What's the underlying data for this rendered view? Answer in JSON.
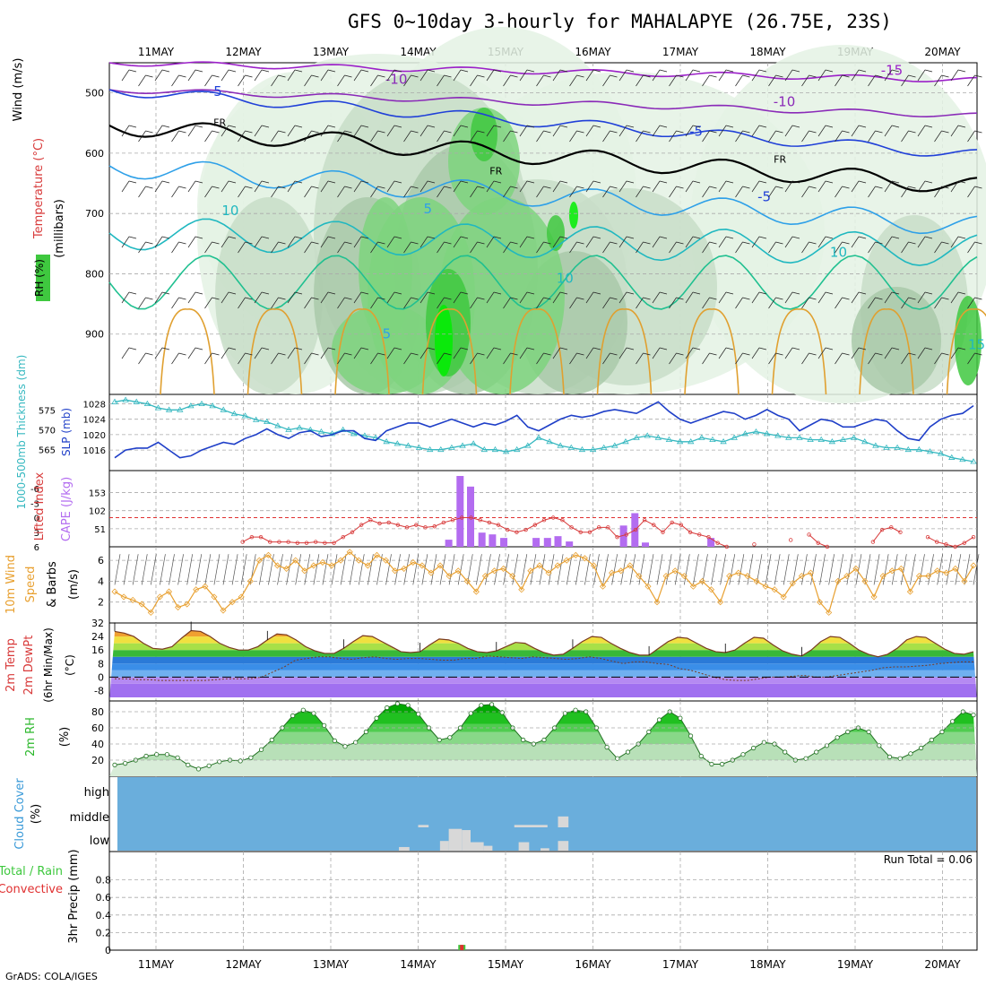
{
  "title": "GFS 0~10day 3-hourly for MAHALAPYE (26.75E, 23S)",
  "credit": "GrADS: COLA/IGES",
  "run_total": "Run Total = 0.06",
  "colors": {
    "grid": "#aaaaaa",
    "slp": "#1f3fc8",
    "thickness": "#36b8c0",
    "lifted": "#d83a3a",
    "cape": "#b36cf0",
    "wind10": "#e8a030",
    "rh2m": "#2cb82c",
    "cloud_bg": "#6aaedc",
    "cloud": "#d8d8d8",
    "rain": "#3ec83e",
    "convective": "#e03030"
  },
  "date_labels": [
    "11MAY",
    "12MAY",
    "13MAY",
    "14MAY",
    "15MAY",
    "16MAY",
    "17MAY",
    "18MAY",
    "19MAY",
    "20MAY"
  ],
  "chart_data": [
    {
      "id": "upper_air",
      "type": "heatmap",
      "ylabel": "(millibars)",
      "side_labels": [
        "Wind (m/s)",
        "Temperature (°C)",
        "RH (%)"
      ],
      "yticks": [
        500,
        600,
        700,
        800,
        900
      ],
      "ylim": [
        1000,
        450
      ],
      "contour_labels": [
        {
          "text": "-15",
          "x": 8.42,
          "p": 470
        },
        {
          "text": "-10",
          "x": 2.75,
          "p": 485
        },
        {
          "text": "-10",
          "x": 7.19,
          "p": 522
        },
        {
          "text": "-5",
          "x": 0.68,
          "p": 505
        },
        {
          "text": "-5",
          "x": 6.18,
          "p": 571
        },
        {
          "text": "-5",
          "x": 6.96,
          "p": 680
        },
        {
          "text": "FR",
          "x": 0.73,
          "p": 555
        },
        {
          "text": "FR",
          "x": 3.89,
          "p": 635
        },
        {
          "text": "FR",
          "x": 7.14,
          "p": 616
        },
        {
          "text": "10",
          "x": 0.85,
          "p": 703
        },
        {
          "text": "5",
          "x": 3.11,
          "p": 700
        },
        {
          "text": "10",
          "x": 4.68,
          "p": 815
        },
        {
          "text": "5",
          "x": 2.64,
          "p": 907
        },
        {
          "text": "10",
          "x": 7.81,
          "p": 772
        },
        {
          "text": "15",
          "x": 9.39,
          "p": 925
        }
      ]
    },
    {
      "id": "thickness_slp",
      "type": "line",
      "ylabel_left": "1000-500mb Thickness (dm)",
      "ylabel_right": "SLP (mb)",
      "thickness_ticks": [
        565,
        570,
        575
      ],
      "slp_ticks": [
        1016,
        1020,
        1024,
        1028
      ],
      "series": [
        {
          "name": "Thickness",
          "values": [
            577,
            577.5,
            577,
            576.5,
            575.5,
            575,
            575,
            576,
            576.5,
            576,
            575,
            574,
            573.5,
            572.5,
            572,
            571,
            570,
            570.5,
            570,
            569.5,
            569,
            570,
            569,
            568.5,
            568,
            567,
            566.5,
            566,
            565.5,
            565,
            565,
            565.5,
            566,
            566.5,
            565,
            565,
            564.5,
            565,
            566,
            568,
            567,
            566,
            565.5,
            565,
            565,
            565.5,
            566,
            567,
            568,
            568.5,
            568,
            567.5,
            567,
            567,
            568,
            567.5,
            567,
            568,
            569,
            569.5,
            569,
            568.5,
            568,
            568,
            567.5,
            567.5,
            567,
            567.5,
            568,
            567,
            566,
            565.5,
            565.5,
            565,
            565,
            564.5,
            564,
            563,
            562.5,
            562
          ]
        },
        {
          "name": "SLP",
          "values": [
            1014,
            1016,
            1016.5,
            1016.5,
            1018,
            1016,
            1014,
            1014.5,
            1016,
            1017,
            1018,
            1017.5,
            1019,
            1020,
            1021.5,
            1020,
            1019,
            1020.5,
            1021,
            1019.5,
            1020,
            1021,
            1021,
            1019,
            1018.5,
            1021,
            1022,
            1023,
            1023,
            1022,
            1023,
            1024,
            1023,
            1022,
            1023,
            1022.5,
            1023.5,
            1025,
            1022,
            1021,
            1022.5,
            1024,
            1025,
            1024.5,
            1025,
            1026,
            1026.5,
            1026,
            1025.5,
            1027,
            1028.5,
            1026,
            1024,
            1023,
            1024,
            1025,
            1026,
            1025.5,
            1024,
            1025,
            1026.5,
            1025,
            1024,
            1021,
            1022.5,
            1024,
            1023.5,
            1022,
            1022,
            1023,
            1024,
            1023.5,
            1021,
            1019,
            1018.5,
            1022,
            1024,
            1025,
            1025.5,
            1027.5
          ]
        }
      ]
    },
    {
      "id": "lifted_cape",
      "type": "bar",
      "ylabel_left": "Lifted Index",
      "ylabel_right": "CAPE (J/kg)",
      "li_ticks": [
        "-6",
        "-3",
        "0",
        "3",
        "6"
      ],
      "cape_ticks": [
        51,
        102,
        153
      ],
      "cape_bars": [
        {
          "x": 3.35,
          "v": 20
        },
        {
          "x": 3.48,
          "v": 200
        },
        {
          "x": 3.6,
          "v": 170
        },
        {
          "x": 3.73,
          "v": 40
        },
        {
          "x": 3.85,
          "v": 35
        },
        {
          "x": 3.98,
          "v": 25
        },
        {
          "x": 4.35,
          "v": 25
        },
        {
          "x": 4.48,
          "v": 25
        },
        {
          "x": 4.6,
          "v": 30
        },
        {
          "x": 4.73,
          "v": 15
        },
        {
          "x": 5.35,
          "v": 60
        },
        {
          "x": 5.48,
          "v": 95
        },
        {
          "x": 5.6,
          "v": 12
        },
        {
          "x": 6.35,
          "v": 25
        }
      ],
      "lifted_index": [
        null,
        null,
        null,
        null,
        null,
        null,
        null,
        null,
        null,
        null,
        null,
        null,
        null,
        null,
        5,
        4,
        4,
        5,
        5,
        5,
        5.2,
        5.2,
        5,
        5.2,
        5.2,
        4,
        3,
        1.5,
        0.5,
        1.2,
        1,
        1.5,
        2,
        1.5,
        2,
        1.8,
        1,
        0.5,
        0,
        0,
        0.5,
        1,
        1.5,
        2.5,
        3,
        2.5,
        1.5,
        0.5,
        0,
        0.5,
        2,
        3,
        3,
        2,
        2,
        4,
        3.5,
        2.5,
        0.5,
        1.5,
        3,
        1,
        1.5,
        3,
        3.5,
        4,
        5.2,
        6,
        null,
        null,
        5.5,
        null,
        null,
        null,
        4.6,
        null,
        3.5,
        5.2,
        6,
        null,
        null,
        null,
        null,
        5,
        2.5,
        2,
        3,
        null,
        null,
        4,
        5,
        5.5,
        6,
        5.2,
        4
      ]
    },
    {
      "id": "wind10m",
      "type": "line",
      "ylabel": "10m Wind Speed & Barbs (m/s)",
      "ticks": [
        2,
        4,
        6
      ],
      "values": [
        3,
        2.5,
        2.2,
        1.8,
        1,
        2.5,
        3,
        1.5,
        1.8,
        3.2,
        3.5,
        2.5,
        1.2,
        2,
        2.5,
        4,
        6,
        6.5,
        5.5,
        5.2,
        6,
        5,
        5.5,
        5.8,
        5.5,
        6,
        6.8,
        6,
        5.5,
        6.5,
        6,
        5,
        5.2,
        5.8,
        5.5,
        4.8,
        5.5,
        4.5,
        5,
        4,
        3,
        4.5,
        5,
        5.2,
        4.5,
        3.2,
        5,
        5.5,
        4.8,
        5.5,
        6,
        6.5,
        6.2,
        5.5,
        3.5,
        4.8,
        5,
        5.5,
        4.5,
        3.5,
        2,
        4.5,
        5,
        4.5,
        3.5,
        4,
        3.2,
        2,
        4.5,
        4.8,
        4.5,
        4,
        3.5,
        3.2,
        2.5,
        3.8,
        4.5,
        4.8,
        2,
        1,
        4,
        4.5,
        5.2,
        4,
        2.5,
        4.5,
        5,
        5.2,
        3,
        4.5,
        4.5,
        5,
        4.8,
        5.2,
        4,
        5.5
      ]
    },
    {
      "id": "temp2m",
      "type": "area",
      "ylabel": "2m Temp 2m DewPt (6hr Min/Max) (°C)",
      "ticks": [
        "-8",
        "0",
        "8",
        "16",
        "24",
        "32"
      ],
      "temp": [
        27,
        26,
        24,
        20,
        17,
        16.5,
        18,
        23,
        27.5,
        27,
        24,
        20,
        17.5,
        16,
        16,
        18,
        22,
        25.5,
        25,
        22,
        18,
        15.5,
        14,
        14,
        17,
        21,
        24.5,
        24,
        21,
        18,
        15,
        14.5,
        15,
        19,
        22.5,
        22,
        20,
        17,
        15,
        14.5,
        15.5,
        18,
        20.5,
        20,
        17,
        14.5,
        13,
        13.5,
        17,
        21,
        24,
        23.5,
        20,
        17,
        14.5,
        13,
        13,
        17,
        21,
        23.5,
        23,
        20,
        17,
        15,
        14.5,
        16,
        20,
        23.5,
        23,
        19,
        15.5,
        13.5,
        12.5,
        16,
        21,
        24,
        23.5,
        20,
        16,
        13.5,
        12,
        13.5,
        17,
        22,
        24,
        23.5,
        20,
        16.5,
        14,
        13.5,
        15
      ],
      "dewpt": [
        -1,
        -1,
        -1.5,
        -1.5,
        -2,
        -2,
        -2,
        -2,
        -2,
        -1.5,
        -1,
        -1,
        -1,
        0,
        3,
        6,
        10,
        11,
        12,
        12,
        11,
        10.5,
        11.5,
        12,
        11,
        10.5,
        11,
        11,
        10.5,
        10,
        10,
        11,
        11,
        12.5,
        12,
        11.5,
        11,
        12,
        11.5,
        11,
        10.5,
        11,
        12,
        11,
        9.5,
        8,
        9,
        9,
        8,
        7.5,
        5,
        4,
        2,
        0,
        -1.5,
        -2,
        -2,
        -1,
        0,
        0,
        0.5,
        1,
        0,
        0,
        1,
        2,
        3,
        4,
        5.5,
        6,
        6,
        6.5,
        7,
        8,
        8.5,
        9,
        9
      ]
    },
    {
      "id": "rh2m",
      "type": "area",
      "ylabel": "2m RH (%)",
      "ticks": [
        20,
        40,
        60,
        80
      ],
      "values": [
        14,
        16,
        20,
        25,
        27,
        27,
        23,
        14,
        9,
        13,
        18,
        20,
        19,
        23,
        33,
        45,
        60,
        75,
        82,
        78,
        63,
        44,
        37,
        42,
        55,
        72,
        85,
        90,
        88,
        77,
        60,
        45,
        48,
        60,
        78,
        88,
        89,
        79,
        60,
        45,
        40,
        45,
        60,
        78,
        82,
        80,
        60,
        36,
        22,
        30,
        40,
        55,
        70,
        80,
        72,
        50,
        25,
        15,
        15,
        20,
        27,
        35,
        42,
        40,
        30,
        20,
        22,
        30,
        38,
        48,
        55,
        60,
        55,
        38,
        24,
        22,
        28,
        35,
        45,
        55,
        68,
        80,
        76
      ]
    },
    {
      "id": "cloud_cover",
      "type": "heatmap",
      "ylabel": "Cloud Cover (%)",
      "levels": [
        "high",
        "middle",
        "low"
      ],
      "blocks": [
        {
          "level": "low",
          "x0": 2.78,
          "x1": 2.9,
          "h": 0.15
        },
        {
          "level": "middle",
          "x0": 3.0,
          "x1": 3.12,
          "h": 0.1
        },
        {
          "level": "low",
          "x0": 3.25,
          "x1": 3.35,
          "h": 0.4
        },
        {
          "level": "low",
          "x0": 3.35,
          "x1": 3.5,
          "h": 0.9
        },
        {
          "level": "low",
          "x0": 3.5,
          "x1": 3.6,
          "h": 0.85
        },
        {
          "level": "low",
          "x0": 3.6,
          "x1": 3.75,
          "h": 0.35
        },
        {
          "level": "low",
          "x0": 3.75,
          "x1": 3.85,
          "h": 0.2
        },
        {
          "level": "middle",
          "x0": 4.1,
          "x1": 4.48,
          "h": 0.1
        },
        {
          "level": "low",
          "x0": 4.15,
          "x1": 4.27,
          "h": 0.35
        },
        {
          "level": "low",
          "x0": 4.4,
          "x1": 4.5,
          "h": 0.1
        },
        {
          "level": "low",
          "x0": 4.6,
          "x1": 4.72,
          "h": 0.4
        },
        {
          "level": "middle",
          "x0": 4.6,
          "x1": 4.72,
          "h": 0.45
        }
      ]
    },
    {
      "id": "precip3hr",
      "type": "bar",
      "ylabel": "3hr Precip (mm)",
      "side_labels": [
        "Total / Rain",
        "Convective"
      ],
      "ylim": [
        0,
        1
      ],
      "ticks": [
        "0",
        "0.2",
        "0.4",
        "0.6",
        "0.8"
      ],
      "bars": [
        {
          "x": 3.5,
          "total": 0.06,
          "convective": 0.06
        }
      ]
    }
  ]
}
